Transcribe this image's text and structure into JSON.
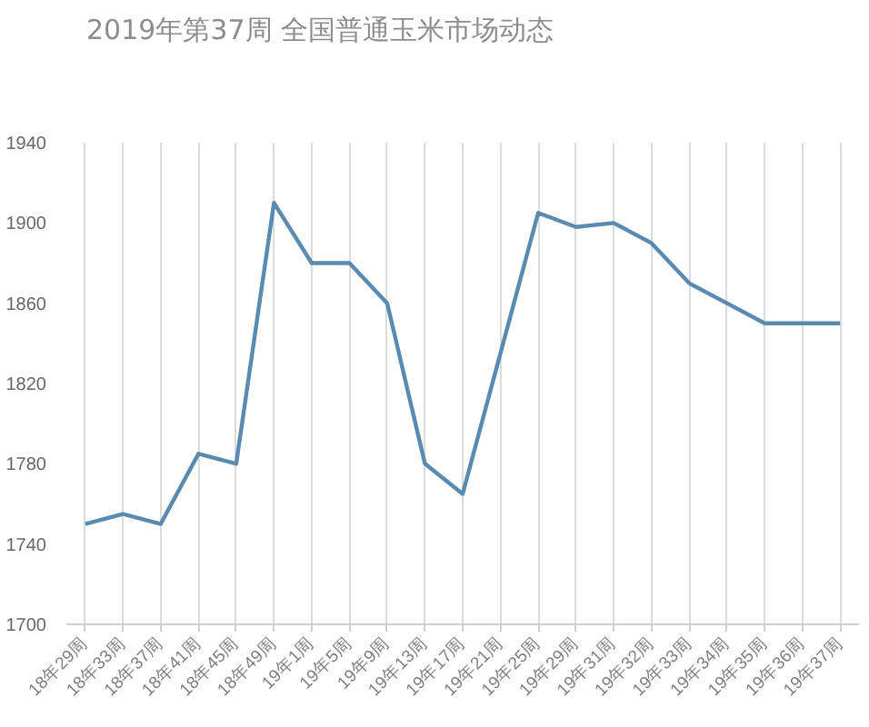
{
  "chart_data": {
    "type": "line",
    "title": "2019年第37周 全国普通玉米市场动态",
    "categories": [
      "18年29周",
      "18年33周",
      "18年37周",
      "18年41周",
      "18年45周",
      "18年49周",
      "19年1周",
      "19年5周",
      "19年9周",
      "19年13周",
      "19年17周",
      "19年21周",
      "19年25周",
      "19年29周",
      "19年31周",
      "19年32周",
      "19年33周",
      "19年34周",
      "19年35周",
      "19年36周",
      "19年37周"
    ],
    "series": [
      {
        "color": "#5b8ab0",
        "values": [
          1750,
          1755,
          1750,
          1785,
          1780,
          1910,
          1880,
          1880,
          1860,
          1780,
          1765,
          1835,
          1905,
          1898,
          1900,
          1890,
          1870,
          1860,
          1850,
          1850,
          1850
        ]
      }
    ],
    "ylim": [
      1700,
      1940
    ],
    "yticks": [
      1700,
      1740,
      1780,
      1820,
      1860,
      1900,
      1940
    ],
    "grid": "x",
    "line_style": "solid"
  }
}
